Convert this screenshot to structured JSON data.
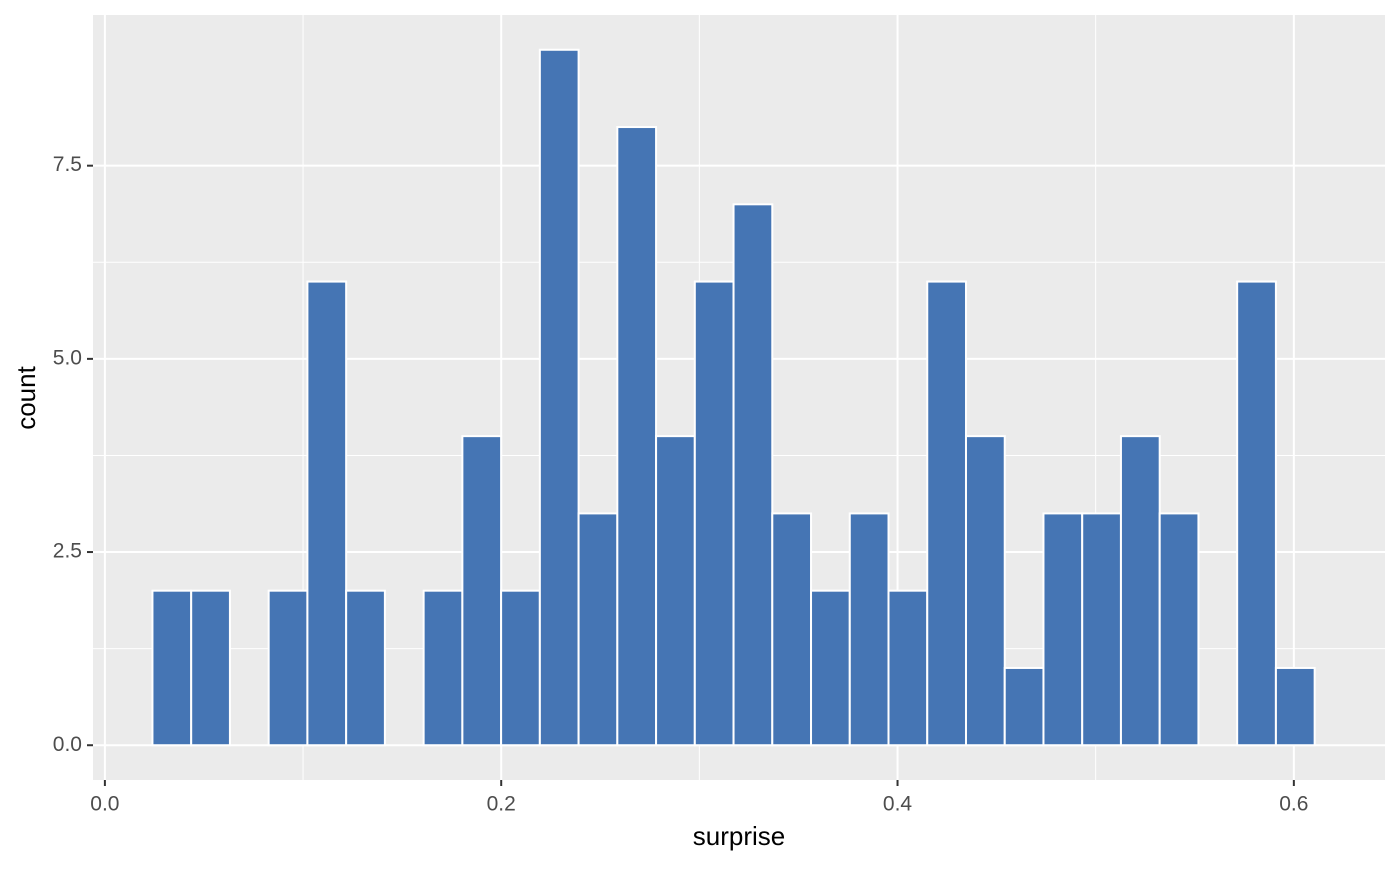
{
  "chart_data": {
    "type": "histogram",
    "x_label": "surprise",
    "y_label": "count",
    "bins": [
      0.024,
      0.04355,
      0.0631,
      0.08265,
      0.1022,
      0.12175,
      0.1413,
      0.16085,
      0.1804,
      0.19995,
      0.2195,
      0.23905,
      0.2586,
      0.27815,
      0.2977,
      0.31725,
      0.3368,
      0.35635,
      0.3759,
      0.39545,
      0.415,
      0.43455,
      0.4541,
      0.47365,
      0.4932,
      0.51275,
      0.5323,
      0.55185,
      0.5714,
      0.59095,
      0.6105
    ],
    "values": [
      2,
      2,
      0,
      2,
      6,
      2,
      0,
      2,
      4,
      2,
      9,
      3,
      8,
      4,
      6,
      7,
      3,
      2,
      3,
      2,
      6,
      4,
      1,
      3,
      3,
      4,
      3,
      0,
      6,
      1
    ],
    "color": "#4575b4",
    "xlim": [
      -0.006,
      0.646
    ],
    "ylim": [
      -0.45,
      9.45
    ],
    "xticks": [
      {
        "value": 0,
        "label": "0.0"
      },
      {
        "value": 0.2,
        "label": "0.2"
      },
      {
        "value": 0.4,
        "label": "0.4"
      },
      {
        "value": 0.6,
        "label": "0.6"
      }
    ],
    "yticks": [
      {
        "value": 0,
        "label": "0.0"
      },
      {
        "value": 2.5,
        "label": "2.5"
      },
      {
        "value": 5,
        "label": "5.0"
      },
      {
        "value": 7.5,
        "label": "7.5"
      }
    ],
    "grid": true
  }
}
